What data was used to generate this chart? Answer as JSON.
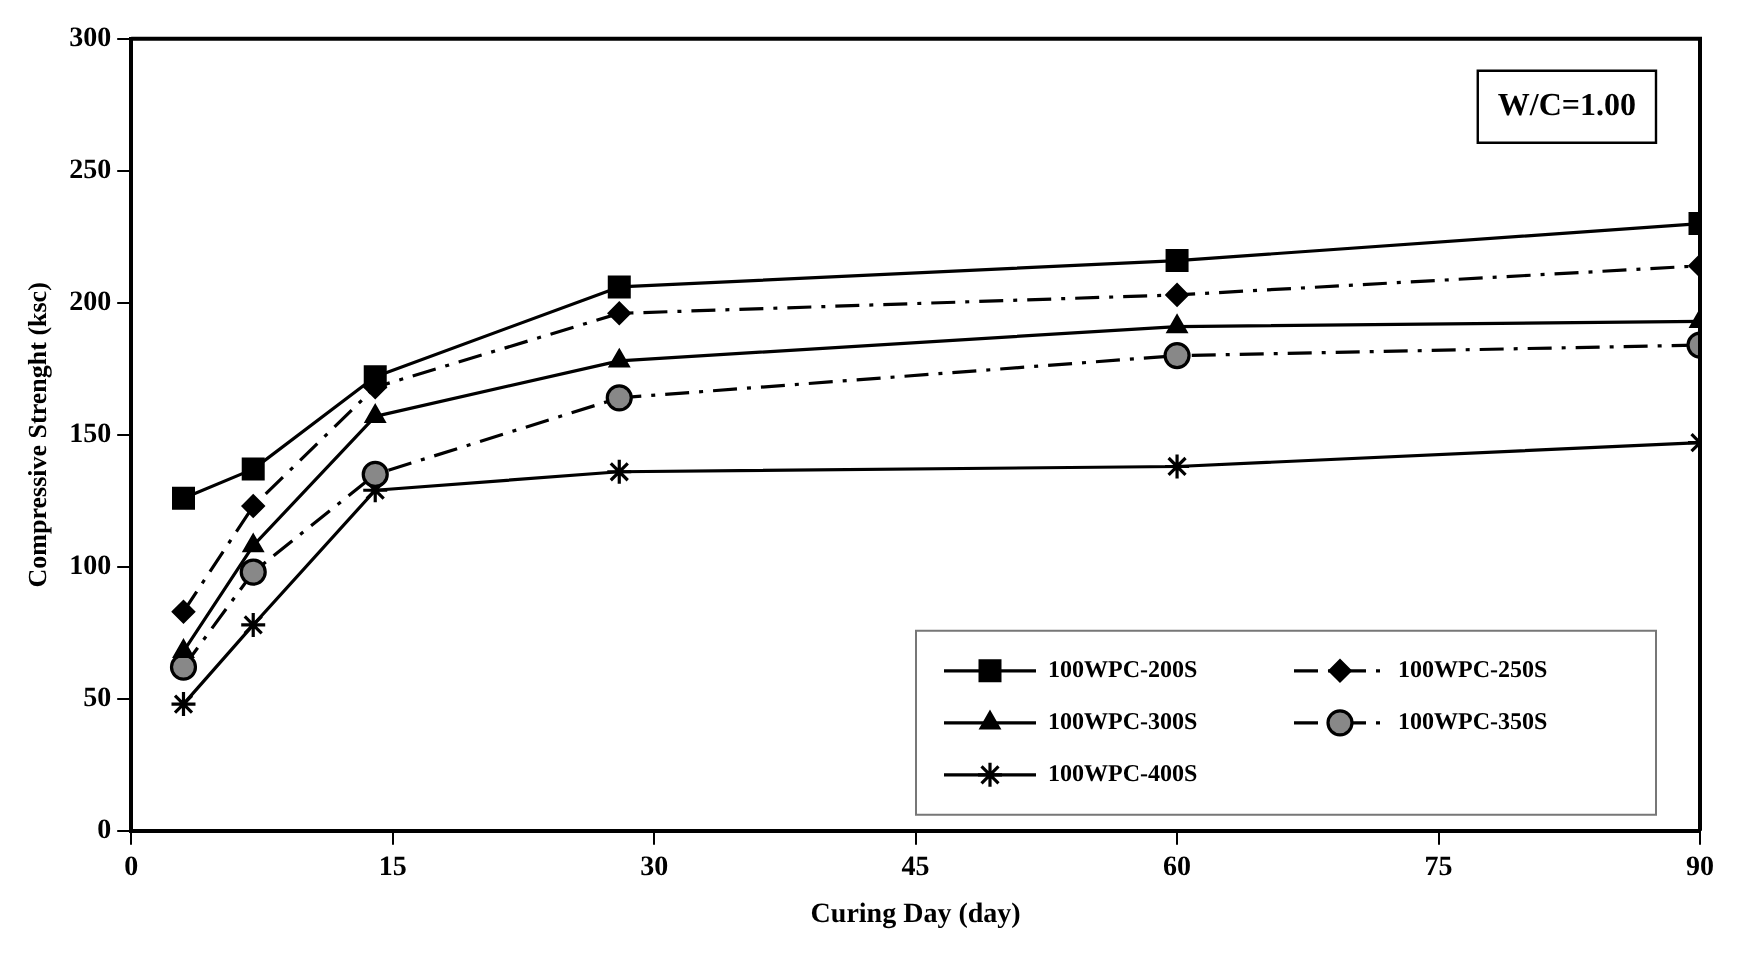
{
  "chart_data": {
    "type": "line",
    "xlabel": "Curing Day (day)",
    "ylabel": "Compressive Strenght (ksc)",
    "annotations": [
      "W/C=1.00"
    ],
    "x": [
      3,
      7,
      14,
      28,
      60,
      90
    ],
    "xlim": [
      0,
      90
    ],
    "xticks": [
      0,
      15,
      30,
      45,
      60,
      75,
      90
    ],
    "ylim": [
      0,
      300
    ],
    "yticks": [
      0,
      50,
      100,
      150,
      200,
      250,
      300
    ],
    "grid": false,
    "legend": "bottom right",
    "series": [
      {
        "name": "100WPC-200S",
        "color": "#000000",
        "marker": "square",
        "line_style": "solid",
        "values": [
          126,
          137,
          172,
          206,
          216,
          230
        ]
      },
      {
        "name": "100WPC-250S",
        "color": "#000000",
        "marker": "diamond",
        "line_style": "dashed",
        "values": [
          83,
          123,
          168,
          196,
          203,
          214
        ]
      },
      {
        "name": "100WPC-300S",
        "color": "#000000",
        "marker": "triangle",
        "line_style": "solid",
        "values": [
          68,
          108,
          157,
          178,
          191,
          193
        ]
      },
      {
        "name": "100WPC-350S",
        "color": "#000000",
        "marker": "circle",
        "line_style": "dashed",
        "values": [
          62,
          98,
          135,
          164,
          180,
          184
        ]
      },
      {
        "name": "100WPC-400S",
        "color": "#000000",
        "marker": "cross",
        "line_style": "solid",
        "values": [
          48,
          78,
          129,
          136,
          138,
          147
        ]
      }
    ]
  }
}
